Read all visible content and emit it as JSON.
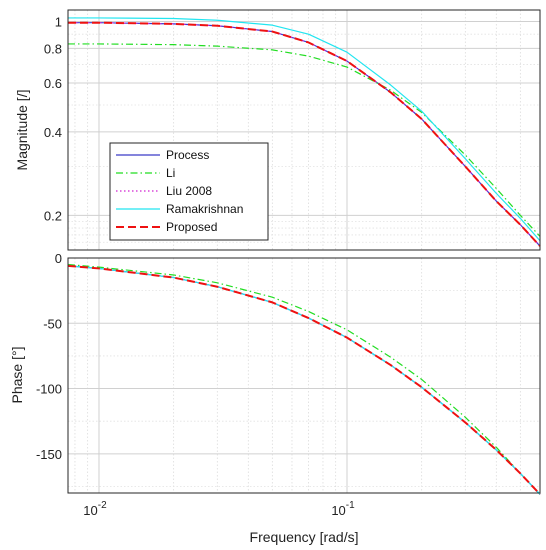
{
  "chart_data": [
    {
      "type": "line",
      "subplot": "magnitude",
      "ylabel": "Magnitude [/]",
      "xlabel": "",
      "xscale": "log",
      "yscale": "log",
      "xlim": [
        0.0075,
        0.6
      ],
      "ylim": [
        0.15,
        1.1
      ],
      "grid": true,
      "minor_grid": true,
      "legend_position": "lower-left",
      "y_ticks": [
        {
          "value": 0.2,
          "label": "0.2"
        },
        {
          "value": 0.4,
          "label": "0.4"
        },
        {
          "value": 0.6,
          "label": "0.6"
        },
        {
          "value": 0.8,
          "label": "0.8"
        },
        {
          "value": 1.0,
          "label": "1"
        }
      ],
      "series": [
        {
          "name": "Process",
          "color": "#3b3bc8",
          "style": "solid",
          "x": [
            0.0075,
            0.01,
            0.02,
            0.03,
            0.05,
            0.07,
            0.1,
            0.15,
            0.2,
            0.3,
            0.4,
            0.5,
            0.6
          ],
          "y": [
            0.99,
            0.99,
            0.98,
            0.965,
            0.92,
            0.84,
            0.72,
            0.555,
            0.445,
            0.3,
            0.225,
            0.185,
            0.155
          ]
        },
        {
          "name": "Li",
          "color": "#22dd22",
          "style": "dashdot",
          "x": [
            0.0075,
            0.01,
            0.02,
            0.03,
            0.05,
            0.07,
            0.1,
            0.15,
            0.2,
            0.3,
            0.4,
            0.5,
            0.6
          ],
          "y": [
            0.83,
            0.83,
            0.825,
            0.815,
            0.79,
            0.75,
            0.685,
            0.565,
            0.47,
            0.33,
            0.25,
            0.2,
            0.168
          ]
        },
        {
          "name": "Liu 2008",
          "color": "#d020d0",
          "style": "dotted",
          "x": [
            0.0075,
            0.01,
            0.02,
            0.03,
            0.05,
            0.07,
            0.1,
            0.15,
            0.2,
            0.3,
            0.4,
            0.5,
            0.6
          ],
          "y": [
            0.99,
            0.99,
            0.98,
            0.965,
            0.92,
            0.84,
            0.72,
            0.555,
            0.445,
            0.3,
            0.225,
            0.185,
            0.155
          ]
        },
        {
          "name": "Ramakrishnan",
          "color": "#22e5f0",
          "style": "solid",
          "x": [
            0.0075,
            0.01,
            0.02,
            0.03,
            0.05,
            0.07,
            0.1,
            0.15,
            0.2,
            0.3,
            0.4,
            0.5,
            0.6
          ],
          "y": [
            1.03,
            1.03,
            1.025,
            1.01,
            0.97,
            0.9,
            0.775,
            0.59,
            0.475,
            0.32,
            0.24,
            0.195,
            0.162
          ]
        },
        {
          "name": "Proposed",
          "color": "#ee1111",
          "style": "dashed",
          "x": [
            0.0075,
            0.01,
            0.02,
            0.03,
            0.05,
            0.07,
            0.1,
            0.15,
            0.2,
            0.3,
            0.4,
            0.5,
            0.6
          ],
          "y": [
            0.99,
            0.99,
            0.98,
            0.965,
            0.92,
            0.84,
            0.72,
            0.555,
            0.445,
            0.3,
            0.225,
            0.185,
            0.155
          ]
        }
      ]
    },
    {
      "type": "line",
      "subplot": "phase",
      "ylabel": "Phase [°]",
      "xlabel": "Frequency [rad/s]",
      "xscale": "log",
      "yscale": "linear",
      "xlim": [
        0.0075,
        0.6
      ],
      "ylim": [
        -180,
        0
      ],
      "grid": true,
      "minor_grid": true,
      "x_ticks": [
        {
          "value": 0.01,
          "base": "10",
          "exp": "-2"
        },
        {
          "value": 0.1,
          "base": "10",
          "exp": "-1"
        }
      ],
      "y_ticks": [
        {
          "value": 0,
          "label": "0"
        },
        {
          "value": -50,
          "label": "-50"
        },
        {
          "value": -100,
          "label": "-100"
        },
        {
          "value": -150,
          "label": "-150"
        }
      ],
      "series": [
        {
          "name": "Process",
          "color": "#3b3bc8",
          "style": "solid",
          "x": [
            0.0075,
            0.01,
            0.02,
            0.03,
            0.05,
            0.07,
            0.1,
            0.15,
            0.2,
            0.3,
            0.4,
            0.5,
            0.6
          ],
          "y": [
            -6,
            -8,
            -15,
            -22,
            -34,
            -46,
            -61,
            -82,
            -99,
            -126,
            -147,
            -165,
            -181
          ]
        },
        {
          "name": "Li",
          "color": "#22dd22",
          "style": "dashdot",
          "x": [
            0.0075,
            0.01,
            0.02,
            0.03,
            0.05,
            0.07,
            0.1,
            0.15,
            0.2,
            0.3,
            0.4,
            0.5,
            0.6
          ],
          "y": [
            -5,
            -7,
            -13,
            -19,
            -30,
            -41,
            -55,
            -76,
            -93,
            -122,
            -145,
            -165,
            -181
          ]
        },
        {
          "name": "Liu 2008",
          "color": "#d020d0",
          "style": "dotted",
          "x": [
            0.0075,
            0.01,
            0.02,
            0.03,
            0.05,
            0.07,
            0.1,
            0.15,
            0.2,
            0.3,
            0.4,
            0.5,
            0.6
          ],
          "y": [
            -6,
            -8,
            -15,
            -22,
            -34,
            -46,
            -61,
            -82,
            -99,
            -126,
            -147,
            -165,
            -181
          ]
        },
        {
          "name": "Ramakrishnan",
          "color": "#22e5f0",
          "style": "solid",
          "x": [
            0.0075,
            0.01,
            0.02,
            0.03,
            0.05,
            0.07,
            0.1,
            0.15,
            0.2,
            0.3,
            0.4,
            0.5,
            0.6
          ],
          "y": [
            -6,
            -8,
            -15,
            -22,
            -34,
            -46,
            -61,
            -82,
            -99,
            -126,
            -147,
            -165,
            -181
          ]
        },
        {
          "name": "Proposed",
          "color": "#ee1111",
          "style": "dashed",
          "x": [
            0.0075,
            0.01,
            0.02,
            0.03,
            0.05,
            0.07,
            0.1,
            0.15,
            0.2,
            0.3,
            0.4,
            0.5,
            0.6
          ],
          "y": [
            -6,
            -8,
            -15,
            -22,
            -34,
            -46,
            -61,
            -82,
            -99,
            -126,
            -147,
            -165,
            -181
          ]
        }
      ]
    }
  ]
}
